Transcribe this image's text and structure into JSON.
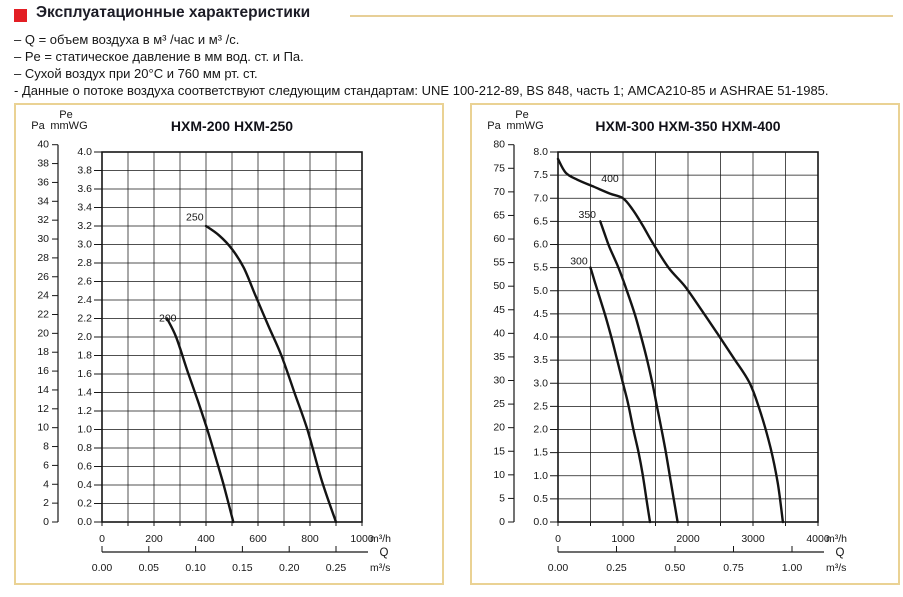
{
  "header": {
    "bullet_color": "#e31e24",
    "rule_color": "#e7cf97",
    "title": "Эксплуатационные характеристики",
    "notes": [
      "– Q = объем воздуха в м³ /час и м³ /с.",
      "– Pe = статическое давление в мм вод. ст. и Па.",
      "– Сухой воздух при 20°C и 760 мм рт. ст.",
      "- Данные о потоке воздуха соответствуют следующим стандартам: UNE 100-212-89, BS 848, часть 1; AMCA210-85 и ASHRAE 51-1985."
    ]
  },
  "chart_data": [
    {
      "type": "line",
      "title": "HXM-200   HXM-250",
      "pe_label": "Pe",
      "pa_label": "Pa",
      "mmwg_label": "mmWG",
      "q_label": "Q",
      "x_unit_primary": "m³/h",
      "x_unit_secondary": "m³/s",
      "grid": true,
      "legend_position": "none",
      "x": {
        "min": 0,
        "max": 1000,
        "grid_step": 100,
        "tick_values": [
          0,
          200,
          400,
          600,
          800,
          1000
        ],
        "tick_labels": [
          "0",
          "200",
          "400",
          "600",
          "800",
          "1000"
        ]
      },
      "x2": {
        "to_primary": 3600,
        "tick_values": [
          0,
          0.05,
          0.1,
          0.15,
          0.2,
          0.25
        ],
        "tick_labels": [
          "0.00",
          "0.05",
          "0.10",
          "0.15",
          "0.20",
          "0.25"
        ]
      },
      "y_mmwg": {
        "min": 0,
        "max": 4,
        "step": 0.2,
        "tick_labels": [
          "4.0",
          "3.8",
          "3.6",
          "3.4",
          "3.2",
          "3.0",
          "2.8",
          "2.6",
          "2.4",
          "2.2",
          "2.0",
          "1.8",
          "1.6",
          "1.4",
          "1.2",
          "1.0",
          "0.8",
          "0.6",
          "0.4",
          "0.2",
          "0.0"
        ]
      },
      "y_pa": {
        "max": 40,
        "step": 2,
        "pa_per_mmwg": 9.80665,
        "tick_labels": [
          "40",
          "38",
          "36",
          "34",
          "32",
          "30",
          "28",
          "26",
          "24",
          "22",
          "20",
          "18",
          "16",
          "14",
          "12",
          "10",
          "8",
          "6",
          "4",
          "2",
          "0"
        ]
      },
      "series": [
        {
          "name": "200",
          "label_at": [
            253,
            2.17
          ],
          "points": [
            [
              250,
              2.2
            ],
            [
              285,
              2.0
            ],
            [
              330,
              1.62
            ],
            [
              370,
              1.3
            ],
            [
              405,
              1.0
            ],
            [
              437,
              0.7
            ],
            [
              468,
              0.4
            ],
            [
              505,
              0
            ]
          ]
        },
        {
          "name": "250",
          "label_at": [
            357,
            3.26
          ],
          "points": [
            [
              400,
              3.2
            ],
            [
              450,
              3.1
            ],
            [
              500,
              2.95
            ],
            [
              545,
              2.75
            ],
            [
              590,
              2.45
            ],
            [
              640,
              2.12
            ],
            [
              690,
              1.8
            ],
            [
              740,
              1.4
            ],
            [
              790,
              1.0
            ],
            [
              845,
              0.45
            ],
            [
              900,
              0
            ]
          ]
        }
      ]
    },
    {
      "type": "line",
      "title": "HXM-300   HXM-350   HXM-400",
      "pe_label": "Pe",
      "pa_label": "Pa",
      "mmwg_label": "mmWG",
      "q_label": "Q",
      "x_unit_primary": "m³/h",
      "x_unit_secondary": "m³/s",
      "grid": true,
      "legend_position": "none",
      "x": {
        "min": 0,
        "max": 4000,
        "grid_step": 500,
        "tick_values": [
          0,
          1000,
          2000,
          3000,
          4000
        ],
        "tick_labels": [
          "0",
          "1000",
          "2000",
          "3000",
          "4000"
        ]
      },
      "x2": {
        "to_primary": 3600,
        "tick_values": [
          0,
          0.25,
          0.5,
          0.75,
          1.0
        ],
        "tick_labels": [
          "0.00",
          "0.25",
          "0.50",
          "0.75",
          "1.00"
        ]
      },
      "y_mmwg": {
        "min": 0,
        "max": 8,
        "step": 0.5,
        "tick_labels": [
          "8.0",
          "7.5",
          "7.0",
          "6.5",
          "6.0",
          "5.5",
          "5.0",
          "4.5",
          "4.0",
          "3.5",
          "3.0",
          "2.5",
          "2.0",
          "1.5",
          "1.0",
          "0.5",
          "0.0"
        ]
      },
      "y_pa": {
        "max": 80,
        "step": 5,
        "pa_per_mmwg": 9.80665,
        "tick_labels": [
          "80",
          "75",
          "70",
          "65",
          "60",
          "55",
          "50",
          "45",
          "40",
          "35",
          "30",
          "25",
          "20",
          "15",
          "10",
          "5",
          "0"
        ]
      },
      "series": [
        {
          "name": "300",
          "label_at": [
            323,
            5.57
          ],
          "points": [
            [
              500,
              5.5
            ],
            [
              560,
              5.22
            ],
            [
              620,
              4.95
            ],
            [
              720,
              4.5
            ],
            [
              820,
              4.0
            ],
            [
              910,
              3.5
            ],
            [
              1000,
              3.0
            ],
            [
              1080,
              2.55
            ],
            [
              1160,
              2.0
            ],
            [
              1240,
              1.5
            ],
            [
              1300,
              1.05
            ],
            [
              1360,
              0.5
            ],
            [
              1415,
              0
            ]
          ]
        },
        {
          "name": "350",
          "label_at": [
            450,
            6.57
          ],
          "points": [
            [
              650,
              6.5
            ],
            [
              720,
              6.22
            ],
            [
              790,
              5.95
            ],
            [
              930,
              5.5
            ],
            [
              1060,
              5.0
            ],
            [
              1180,
              4.5
            ],
            [
              1280,
              4.0
            ],
            [
              1380,
              3.45
            ],
            [
              1460,
              2.95
            ],
            [
              1530,
              2.45
            ],
            [
              1600,
              1.95
            ],
            [
              1660,
              1.5
            ],
            [
              1720,
              1.0
            ],
            [
              1780,
              0.5
            ],
            [
              1840,
              0
            ]
          ]
        },
        {
          "name": "400",
          "label_at": [
            800,
            7.35
          ],
          "points": [
            [
              0,
              7.85
            ],
            [
              120,
              7.55
            ],
            [
              300,
              7.4
            ],
            [
              550,
              7.25
            ],
            [
              800,
              7.1
            ],
            [
              1000,
              7.0
            ],
            [
              1150,
              6.75
            ],
            [
              1300,
              6.42
            ],
            [
              1450,
              6.05
            ],
            [
              1700,
              5.5
            ],
            [
              1950,
              5.1
            ],
            [
              2200,
              4.6
            ],
            [
              2450,
              4.08
            ],
            [
              2700,
              3.55
            ],
            [
              2950,
              3.0
            ],
            [
              3120,
              2.35
            ],
            [
              3270,
              1.6
            ],
            [
              3380,
              0.85
            ],
            [
              3460,
              0
            ]
          ]
        }
      ]
    }
  ]
}
